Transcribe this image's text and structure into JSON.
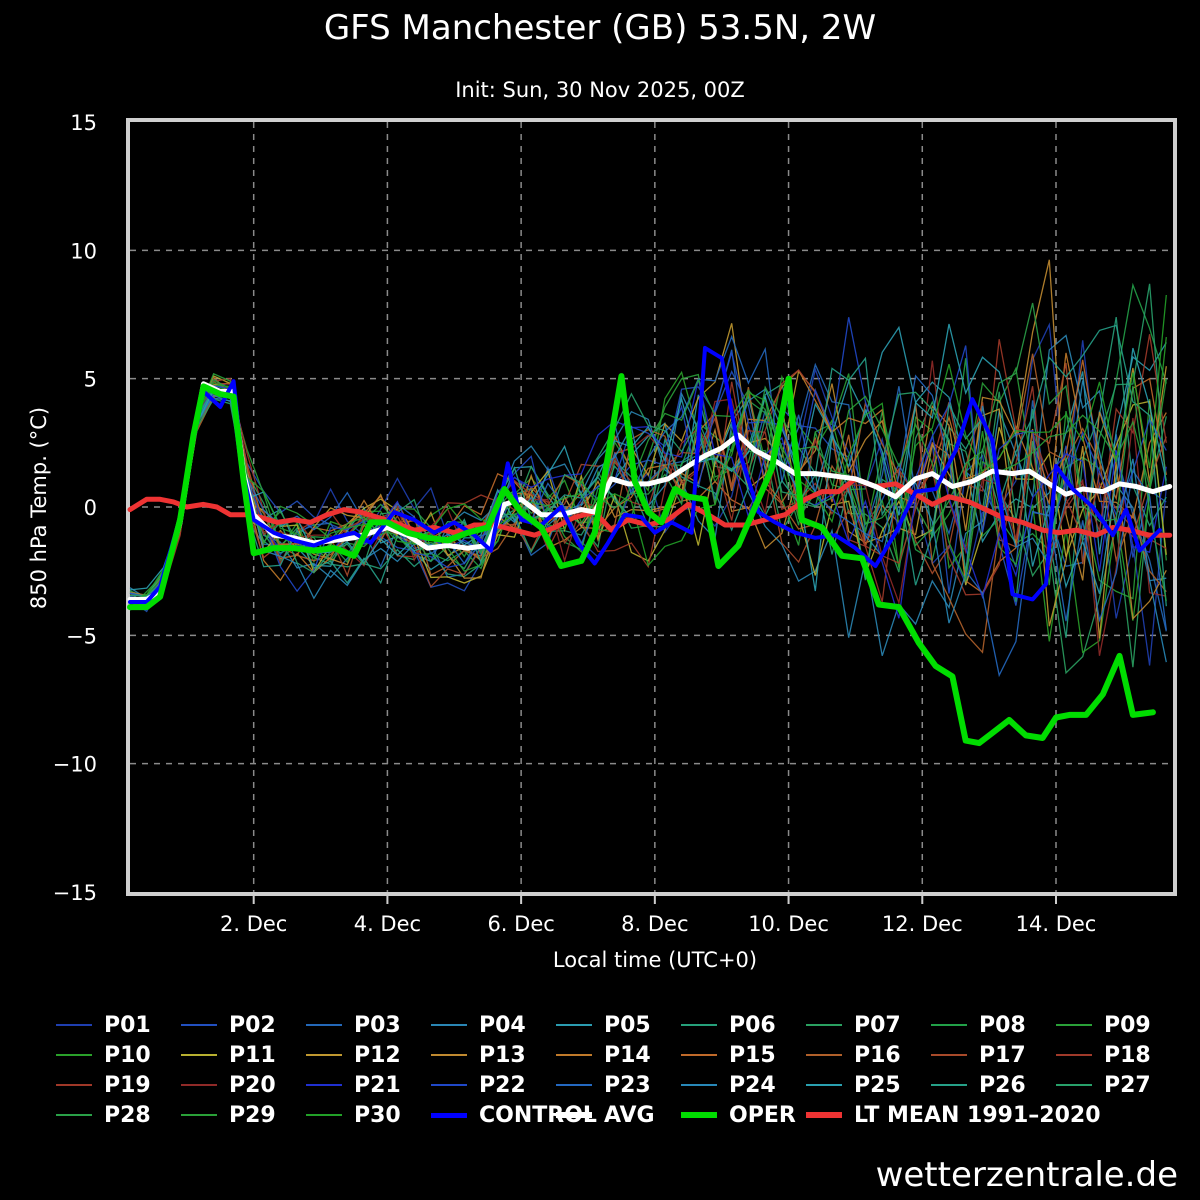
{
  "title": "GFS Manchester (GB) 53.5N, 2W",
  "subtitle": "Init: Sun, 30 Nov 2025, 00Z",
  "watermark": "wetterzentrale.de",
  "chart_data": {
    "type": "line",
    "title": "GFS Manchester (GB) 53.5N, 2W",
    "subtitle": "Init: Sun, 30 Nov 2025, 00Z",
    "xlabel": "Local time (UTC+0)",
    "ylabel": "850 hPa Temp. (°C)",
    "ylim": [
      -15,
      15
    ],
    "xlim": [
      0.15,
      15.75
    ],
    "x_unit": "days since 30 Nov 2025 00Z",
    "yticks": [
      15,
      10,
      5,
      0,
      -5,
      -10,
      -15
    ],
    "ytick_labels": [
      "15",
      "10",
      "5",
      "0",
      "−5",
      "−10",
      "−15"
    ],
    "xticks": [
      2,
      4,
      6,
      8,
      10,
      12,
      14
    ],
    "xtick_labels": [
      "2. Dec",
      "4. Dec",
      "6. Dec",
      "8. Dec",
      "10. Dec",
      "12. Dec",
      "14. Dec"
    ],
    "grid": true,
    "legend_position": "bottom",
    "series": [
      {
        "name": "OPER",
        "color": "#00dd00",
        "width": 6,
        "points": [
          [
            0.15,
            -3.9
          ],
          [
            0.4,
            -3.9
          ],
          [
            0.6,
            -3.5
          ],
          [
            0.9,
            -0.5
          ],
          [
            1.1,
            2.8
          ],
          [
            1.25,
            4.7
          ],
          [
            1.5,
            4.4
          ],
          [
            1.7,
            4.3
          ],
          [
            1.85,
            1.0
          ],
          [
            2.0,
            -1.8
          ],
          [
            2.3,
            -1.6
          ],
          [
            2.6,
            -1.6
          ],
          [
            2.9,
            -1.7
          ],
          [
            3.2,
            -1.6
          ],
          [
            3.5,
            -1.9
          ],
          [
            3.75,
            -0.6
          ],
          [
            4.0,
            -0.6
          ],
          [
            4.3,
            -1.0
          ],
          [
            4.6,
            -1.2
          ],
          [
            4.9,
            -1.3
          ],
          [
            5.2,
            -1.0
          ],
          [
            5.5,
            -0.8
          ],
          [
            5.75,
            0.7
          ],
          [
            6.0,
            -0.2
          ],
          [
            6.3,
            -0.8
          ],
          [
            6.6,
            -2.3
          ],
          [
            6.9,
            -2.1
          ],
          [
            7.1,
            -1.0
          ],
          [
            7.3,
            2.0
          ],
          [
            7.5,
            5.1
          ],
          [
            7.7,
            1.0
          ],
          [
            7.9,
            -0.2
          ],
          [
            8.1,
            -0.6
          ],
          [
            8.3,
            0.7
          ],
          [
            8.5,
            0.4
          ],
          [
            8.75,
            0.3
          ],
          [
            8.95,
            -2.3
          ],
          [
            9.25,
            -1.5
          ],
          [
            9.5,
            0.0
          ],
          [
            9.75,
            1.5
          ],
          [
            10.0,
            5.0
          ],
          [
            10.2,
            -0.5
          ],
          [
            10.5,
            -0.8
          ],
          [
            10.8,
            -1.9
          ],
          [
            11.1,
            -2.0
          ],
          [
            11.35,
            -3.8
          ],
          [
            11.65,
            -3.9
          ],
          [
            11.95,
            -5.3
          ],
          [
            12.2,
            -6.2
          ],
          [
            12.45,
            -6.6
          ],
          [
            12.65,
            -9.1
          ],
          [
            12.85,
            -9.2
          ],
          [
            13.05,
            -8.8
          ],
          [
            13.3,
            -8.3
          ],
          [
            13.55,
            -8.9
          ],
          [
            13.8,
            -9.0
          ],
          [
            14.0,
            -8.2
          ],
          [
            14.2,
            -8.1
          ],
          [
            14.45,
            -8.1
          ],
          [
            14.7,
            -7.3
          ],
          [
            14.95,
            -5.8
          ],
          [
            15.15,
            -8.1
          ],
          [
            15.45,
            -8.0
          ]
        ]
      },
      {
        "name": "CONTROL",
        "color": "#0000ff",
        "width": 4,
        "points": [
          [
            0.15,
            -3.7
          ],
          [
            0.4,
            -3.7
          ],
          [
            0.6,
            -3.1
          ],
          [
            0.9,
            -0.4
          ],
          [
            1.1,
            2.6
          ],
          [
            1.25,
            4.5
          ],
          [
            1.5,
            3.9
          ],
          [
            1.7,
            4.9
          ],
          [
            1.85,
            1.2
          ],
          [
            2.0,
            -0.5
          ],
          [
            2.3,
            -1.0
          ],
          [
            2.6,
            -1.3
          ],
          [
            2.9,
            -1.5
          ],
          [
            3.2,
            -1.2
          ],
          [
            3.5,
            -1.0
          ],
          [
            3.75,
            -1.4
          ],
          [
            4.1,
            -0.2
          ],
          [
            4.4,
            -0.5
          ],
          [
            4.7,
            -1.0
          ],
          [
            5.0,
            -0.6
          ],
          [
            5.3,
            -1.1
          ],
          [
            5.55,
            -1.7
          ],
          [
            5.8,
            1.7
          ],
          [
            6.0,
            -0.5
          ],
          [
            6.3,
            -0.7
          ],
          [
            6.6,
            0.0
          ],
          [
            6.85,
            -1.4
          ],
          [
            7.1,
            -2.2
          ],
          [
            7.3,
            -1.4
          ],
          [
            7.55,
            -0.3
          ],
          [
            7.8,
            -0.4
          ],
          [
            8.0,
            -1.0
          ],
          [
            8.25,
            -0.6
          ],
          [
            8.55,
            -1.0
          ],
          [
            8.75,
            6.2
          ],
          [
            9.0,
            5.8
          ],
          [
            9.25,
            2.3
          ],
          [
            9.55,
            -0.2
          ],
          [
            9.8,
            -0.6
          ],
          [
            10.1,
            -1.0
          ],
          [
            10.4,
            -1.2
          ],
          [
            10.7,
            -1.1
          ],
          [
            11.0,
            -1.6
          ],
          [
            11.3,
            -2.3
          ],
          [
            11.6,
            -1.0
          ],
          [
            11.9,
            0.6
          ],
          [
            12.2,
            0.7
          ],
          [
            12.5,
            2.2
          ],
          [
            12.75,
            4.2
          ],
          [
            13.05,
            2.6
          ],
          [
            13.35,
            -3.4
          ],
          [
            13.65,
            -3.6
          ],
          [
            13.85,
            -3.0
          ],
          [
            14.0,
            1.6
          ],
          [
            14.25,
            0.7
          ],
          [
            14.55,
            0.0
          ],
          [
            14.85,
            -1.1
          ],
          [
            15.05,
            -0.1
          ],
          [
            15.25,
            -1.7
          ],
          [
            15.55,
            -0.9
          ]
        ]
      },
      {
        "name": "AVG",
        "color": "#ffffff",
        "width": 5,
        "points": [
          [
            0.15,
            -3.6
          ],
          [
            0.4,
            -3.6
          ],
          [
            0.6,
            -3.3
          ],
          [
            0.9,
            -0.6
          ],
          [
            1.1,
            2.7
          ],
          [
            1.25,
            4.8
          ],
          [
            1.5,
            4.5
          ],
          [
            1.7,
            4.5
          ],
          [
            1.85,
            1.3
          ],
          [
            2.0,
            -0.3
          ],
          [
            2.3,
            -1.1
          ],
          [
            2.6,
            -1.2
          ],
          [
            2.9,
            -1.4
          ],
          [
            3.2,
            -1.3
          ],
          [
            3.5,
            -1.2
          ],
          [
            3.75,
            -1.0
          ],
          [
            4.0,
            -0.8
          ],
          [
            4.3,
            -1.1
          ],
          [
            4.6,
            -1.6
          ],
          [
            4.9,
            -1.5
          ],
          [
            5.2,
            -1.6
          ],
          [
            5.5,
            -1.5
          ],
          [
            5.75,
            0.1
          ],
          [
            6.0,
            0.3
          ],
          [
            6.3,
            -0.3
          ],
          [
            6.6,
            -0.3
          ],
          [
            6.9,
            -0.1
          ],
          [
            7.1,
            -0.2
          ],
          [
            7.35,
            1.1
          ],
          [
            7.6,
            0.9
          ],
          [
            7.9,
            0.9
          ],
          [
            8.2,
            1.1
          ],
          [
            8.5,
            1.6
          ],
          [
            8.75,
            2.0
          ],
          [
            9.0,
            2.3
          ],
          [
            9.25,
            2.8
          ],
          [
            9.5,
            2.2
          ],
          [
            9.8,
            1.8
          ],
          [
            10.1,
            1.3
          ],
          [
            10.4,
            1.3
          ],
          [
            10.7,
            1.2
          ],
          [
            11.0,
            1.1
          ],
          [
            11.3,
            0.8
          ],
          [
            11.6,
            0.4
          ],
          [
            11.9,
            1.1
          ],
          [
            12.15,
            1.3
          ],
          [
            12.45,
            0.8
          ],
          [
            12.75,
            1.0
          ],
          [
            13.05,
            1.4
          ],
          [
            13.35,
            1.3
          ],
          [
            13.6,
            1.4
          ],
          [
            13.9,
            0.9
          ],
          [
            14.15,
            0.5
          ],
          [
            14.4,
            0.7
          ],
          [
            14.7,
            0.6
          ],
          [
            14.95,
            0.9
          ],
          [
            15.2,
            0.8
          ],
          [
            15.45,
            0.6
          ],
          [
            15.7,
            0.8
          ]
        ]
      },
      {
        "name": "LT MEAN 1991-2020",
        "color": "#ee3333",
        "width": 5,
        "points": [
          [
            0.15,
            -0.1
          ],
          [
            0.4,
            0.3
          ],
          [
            0.6,
            0.3
          ],
          [
            0.8,
            0.2
          ],
          [
            1.0,
            0.0
          ],
          [
            1.25,
            0.1
          ],
          [
            1.45,
            0.0
          ],
          [
            1.65,
            -0.3
          ],
          [
            1.9,
            -0.3
          ],
          [
            2.1,
            -0.4
          ],
          [
            2.35,
            -0.6
          ],
          [
            2.6,
            -0.5
          ],
          [
            2.85,
            -0.6
          ],
          [
            3.1,
            -0.3
          ],
          [
            3.35,
            -0.1
          ],
          [
            3.6,
            -0.2
          ],
          [
            3.85,
            -0.4
          ],
          [
            4.1,
            -0.6
          ],
          [
            4.4,
            -0.9
          ],
          [
            4.7,
            -0.8
          ],
          [
            5.0,
            -1.0
          ],
          [
            5.3,
            -0.7
          ],
          [
            5.6,
            -0.7
          ],
          [
            5.9,
            -0.9
          ],
          [
            6.2,
            -1.1
          ],
          [
            6.5,
            -0.8
          ],
          [
            6.8,
            -0.4
          ],
          [
            7.1,
            -0.2
          ],
          [
            7.35,
            -0.9
          ],
          [
            7.6,
            -0.5
          ],
          [
            7.9,
            -0.7
          ],
          [
            8.2,
            -0.5
          ],
          [
            8.5,
            0.1
          ],
          [
            8.8,
            -0.3
          ],
          [
            9.05,
            -0.7
          ],
          [
            9.35,
            -0.7
          ],
          [
            9.65,
            -0.5
          ],
          [
            9.95,
            -0.3
          ],
          [
            10.25,
            0.3
          ],
          [
            10.5,
            0.6
          ],
          [
            10.75,
            0.6
          ],
          [
            11.0,
            1.1
          ],
          [
            11.3,
            0.8
          ],
          [
            11.6,
            0.9
          ],
          [
            11.9,
            0.5
          ],
          [
            12.15,
            0.1
          ],
          [
            12.4,
            0.4
          ],
          [
            12.7,
            0.2
          ],
          [
            12.95,
            -0.1
          ],
          [
            13.2,
            -0.4
          ],
          [
            13.5,
            -0.6
          ],
          [
            13.8,
            -0.9
          ],
          [
            14.05,
            -1.0
          ],
          [
            14.3,
            -0.9
          ],
          [
            14.6,
            -1.1
          ],
          [
            14.85,
            -0.8
          ],
          [
            15.1,
            -0.9
          ],
          [
            15.4,
            -1.1
          ],
          [
            15.7,
            -1.1
          ]
        ]
      }
    ],
    "legend": [
      {
        "label": "P01",
        "color": "#1f3fb0",
        "width": 2
      },
      {
        "label": "P02",
        "color": "#2250c0",
        "width": 2
      },
      {
        "label": "P03",
        "color": "#2468b8",
        "width": 2
      },
      {
        "label": "P04",
        "color": "#2a86b4",
        "width": 2
      },
      {
        "label": "P05",
        "color": "#2b9cb0",
        "width": 2
      },
      {
        "label": "P06",
        "color": "#26a07a",
        "width": 2
      },
      {
        "label": "P07",
        "color": "#2aa060",
        "width": 2
      },
      {
        "label": "P08",
        "color": "#22a048",
        "width": 2
      },
      {
        "label": "P09",
        "color": "#2aa038",
        "width": 2
      },
      {
        "label": "P10",
        "color": "#2aa02a",
        "width": 2
      },
      {
        "label": "P11",
        "color": "#b8b030",
        "width": 2
      },
      {
        "label": "P12",
        "color": "#c09830",
        "width": 2
      },
      {
        "label": "P13",
        "color": "#c08a30",
        "width": 2
      },
      {
        "label": "P14",
        "color": "#c07a2a",
        "width": 2
      },
      {
        "label": "P15",
        "color": "#c06a2a",
        "width": 2
      },
      {
        "label": "P16",
        "color": "#b0602a",
        "width": 2
      },
      {
        "label": "P17",
        "color": "#a84a2a",
        "width": 2
      },
      {
        "label": "P18",
        "color": "#a03a2a",
        "width": 2
      },
      {
        "label": "P19",
        "color": "#a03828",
        "width": 2
      },
      {
        "label": "P20",
        "color": "#902a28",
        "width": 2
      },
      {
        "label": "P21",
        "color": "#2030d0",
        "width": 2
      },
      {
        "label": "P22",
        "color": "#2048c8",
        "width": 2
      },
      {
        "label": "P23",
        "color": "#2468c0",
        "width": 2
      },
      {
        "label": "P24",
        "color": "#2888b8",
        "width": 2
      },
      {
        "label": "P25",
        "color": "#2aa0b0",
        "width": 2
      },
      {
        "label": "P26",
        "color": "#26a088",
        "width": 2
      },
      {
        "label": "P27",
        "color": "#28a06a",
        "width": 2
      },
      {
        "label": "P28",
        "color": "#2aa048",
        "width": 2
      },
      {
        "label": "P29",
        "color": "#2aa038",
        "width": 2
      },
      {
        "label": "P30",
        "color": "#22a028",
        "width": 2
      },
      {
        "label": "CONTROL",
        "color": "#0000ff",
        "width": 5
      },
      {
        "label": "AVG",
        "color": "#ffffff",
        "width": 6
      },
      {
        "label": "OPER",
        "color": "#00dd00",
        "width": 6
      },
      {
        "label": "LT MEAN 1991–2020",
        "color": "#ee3333",
        "width": 6
      }
    ]
  }
}
